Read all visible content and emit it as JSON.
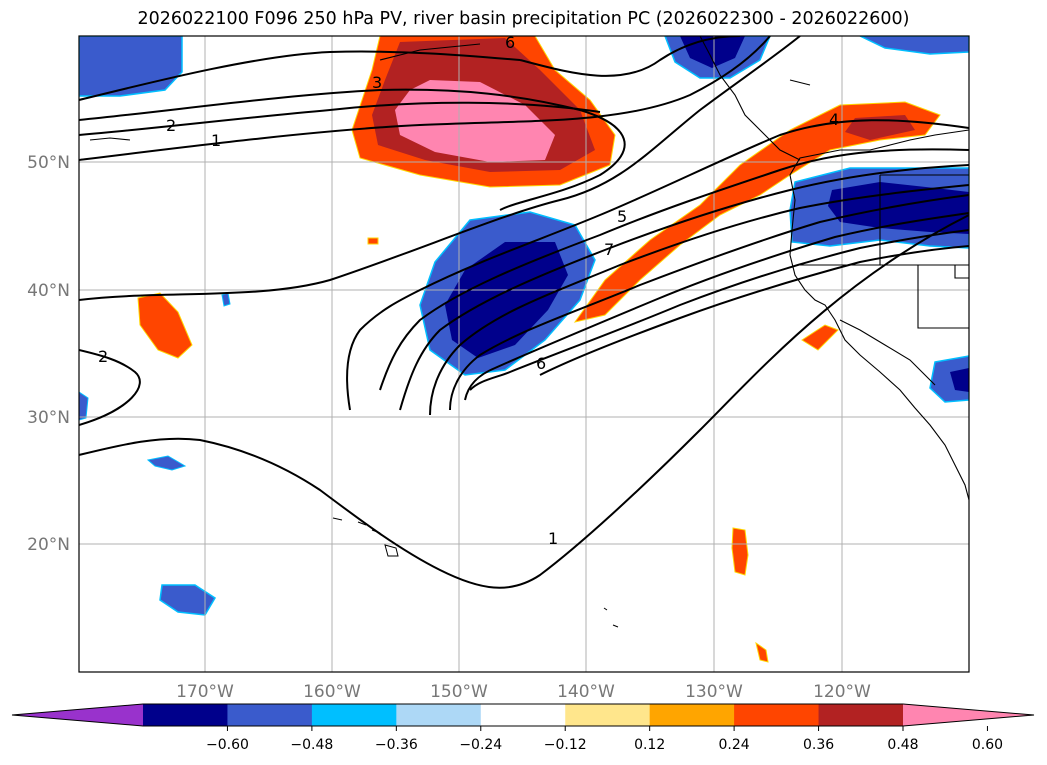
{
  "title": "2026022100 F096 250 hPa PV, river basin precipitation PC (2026022300 - 2026022600)",
  "latitude_labels": [
    "50°N",
    "40°N",
    "30°N",
    "20°N"
  ],
  "longitude_labels": [
    "170°W",
    "160°W",
    "150°W",
    "140°W",
    "130°W",
    "120°W"
  ],
  "pv_contour_labels": [
    "6",
    "3",
    "2",
    "1",
    "5",
    "7",
    "6",
    "4",
    "2",
    "1"
  ],
  "colorbar": {
    "tick_labels": [
      "−0.60",
      "−0.48",
      "−0.36",
      "−0.24",
      "−0.12",
      "0.12",
      "0.24",
      "0.36",
      "0.48",
      "0.60"
    ],
    "colors": [
      "#9932cc",
      "#00008b",
      "#3a5bcc",
      "#00bfff",
      "#add8f6",
      "#ffffff",
      "#ffe68c",
      "#ffa500",
      "#ff4500",
      "#b22222",
      "#ff85b0"
    ]
  },
  "legend_colors": {
    "strong_negative": "#00008b",
    "negative": "#3a5bcc",
    "weak_negative": "#00bfff",
    "weak_positive": "#ffe68c",
    "positive": "#ff4500",
    "strong_positive": "#b22222",
    "max_positive": "#ff85b0"
  }
}
